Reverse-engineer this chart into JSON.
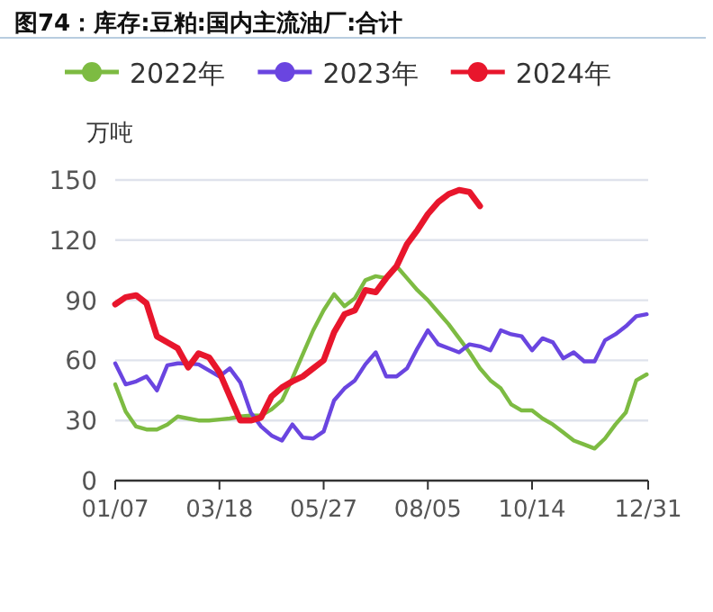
{
  "chart_data": {
    "type": "line",
    "title": "图74：库存:豆粕:国内主流油厂:合计",
    "ylabel": "万吨",
    "x": [
      "--01-07",
      "--01-14",
      "--01-21",
      "--01-28",
      "--02-04",
      "--02-11",
      "--02-18",
      "--02-25",
      "--03-04",
      "--03-11",
      "--03-18",
      "--03-25",
      "--04-01",
      "--04-08",
      "--04-15",
      "--04-22",
      "--04-29",
      "--05-06",
      "--05-13",
      "--05-20",
      "--05-27",
      "--06-03",
      "--06-10",
      "--06-17",
      "--06-24",
      "--07-01",
      "--07-08",
      "--07-15",
      "--07-22",
      "--07-29",
      "--08-05",
      "--08-12",
      "--08-19",
      "--08-26",
      "--09-02",
      "--09-09",
      "--09-16",
      "--09-23",
      "--09-30",
      "--10-07",
      "--10-14",
      "--10-21",
      "--10-28",
      "--11-04",
      "--11-11",
      "--11-18",
      "--11-25",
      "--12-02",
      "--12-09",
      "--12-16",
      "--12-23",
      "--12-30"
    ],
    "series": [
      {
        "name": "2022年",
        "color": "#7dbb42",
        "values": [
          48,
          34.5,
          27,
          25.5,
          25.5,
          28,
          32,
          31,
          30,
          30,
          30.5,
          31,
          32,
          32.5,
          32.5,
          35.5,
          40,
          51,
          63,
          75,
          85,
          93,
          87,
          91,
          100,
          102,
          101,
          107,
          101,
          95,
          90,
          84,
          78,
          71,
          64,
          56,
          50,
          46,
          38,
          35,
          35,
          31,
          28,
          24,
          20,
          18,
          16,
          21,
          28,
          34,
          50,
          53
        ]
      },
      {
        "name": "2023年",
        "color": "#6a45e0",
        "values": [
          58.5,
          48,
          49.5,
          52,
          45,
          57.5,
          58.5,
          58.5,
          58,
          55,
          52,
          56,
          49,
          34,
          27,
          22.5,
          20,
          28,
          21.5,
          21,
          24.5,
          40,
          46,
          50,
          58,
          64,
          52,
          52,
          56,
          66,
          75,
          68,
          66,
          64,
          68,
          67,
          65,
          75,
          73,
          72,
          65,
          71,
          69,
          61,
          64,
          59.5,
          59.5,
          70,
          73,
          77,
          82,
          83
        ]
      },
      {
        "name": "2024年",
        "color": "#e8162c",
        "values": [
          88,
          91.5,
          92.5,
          88.5,
          72,
          69,
          66,
          56.5,
          63.5,
          61.5,
          54,
          42,
          30,
          30,
          31.5,
          42,
          46.5,
          49.5,
          52,
          56,
          60,
          74,
          83,
          85,
          95,
          94,
          101,
          107,
          118,
          125,
          133,
          139,
          143,
          145,
          144,
          137,
          null,
          null,
          null,
          null,
          null,
          null,
          null,
          null,
          null,
          null,
          null,
          null,
          null,
          null,
          null,
          null
        ]
      }
    ],
    "xlim": [
      "--01-07",
      "--12-31"
    ],
    "xticks": [
      {
        "value": "--01-07",
        "label": "01/07"
      },
      {
        "value": "--03-18",
        "label": "03/18"
      },
      {
        "value": "--05-27",
        "label": "05/27"
      },
      {
        "value": "--08-05",
        "label": "08/05"
      },
      {
        "value": "--10-14",
        "label": "10/14"
      },
      {
        "value": "--12-31",
        "label": "12/31"
      }
    ],
    "ylim": [
      0,
      150
    ],
    "yticks": [
      0,
      30,
      60,
      90,
      120,
      150
    ],
    "grid": "y",
    "legend": "top"
  }
}
